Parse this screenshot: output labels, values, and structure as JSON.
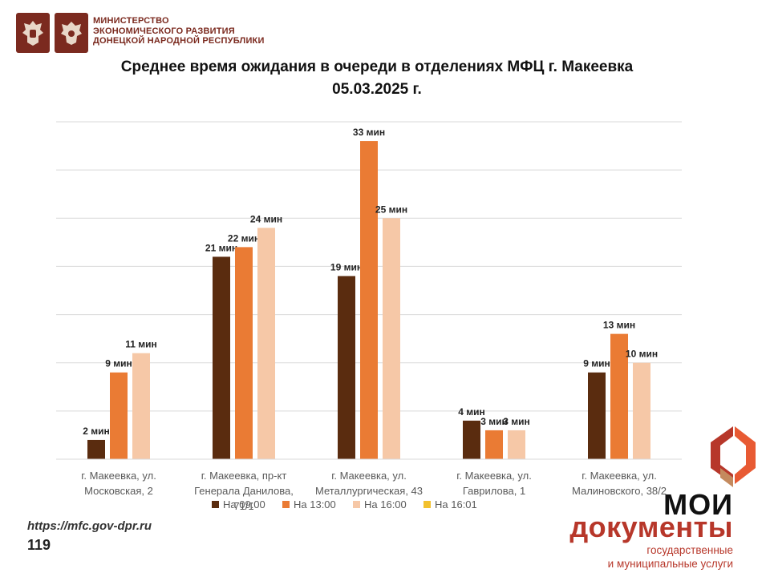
{
  "header": {
    "ministry_lines": [
      "МИНИСТЕРСТВО",
      "ЭКОНОМИЧЕСКОГО РАЗВИТИЯ",
      "ДОНЕЦКОЙ НАРОДНОЙ РЕСПУБЛИКИ"
    ],
    "emblem_color": "#7b2a1f"
  },
  "footer": {
    "url": "https://mfc.gov-dpr.ru",
    "number": "119"
  },
  "brand": {
    "line1": "МОИ",
    "line2": "документы",
    "tagline": [
      "государственные",
      "и муниципальные услуги"
    ],
    "color": "#b7372a"
  },
  "chart_data": {
    "type": "bar",
    "title_lines": [
      "Среднее время ожидания в очереди в отделениях МФЦ г. Макеевка",
      "05.03.2025 г."
    ],
    "categories": [
      [
        "г. Макеевка, ул.",
        "Московская, 2"
      ],
      [
        "г. Макеевка, пр-кт",
        "Генерала Данилова,",
        "71/1"
      ],
      [
        "г. Макеевка, ул.",
        "Металлургическая, 43"
      ],
      [
        "г. Макеевка, ул.",
        "Гаврилова, 1"
      ],
      [
        "г. Макеевка, ул.",
        "Малиновского, 38/2"
      ]
    ],
    "series": [
      {
        "name": "На 09:00",
        "color": "#5a2c0f",
        "values": [
          2,
          21,
          19,
          4,
          9
        ],
        "labels": [
          "2 мин",
          "21 мин",
          "19 мин",
          "4 мин",
          "9 мин"
        ]
      },
      {
        "name": "На 13:00",
        "color": "#ea7b34",
        "values": [
          9,
          22,
          33,
          3,
          13
        ],
        "labels": [
          "9 мин",
          "22 мин",
          "33 мин",
          "3 мин",
          "13 мин"
        ]
      },
      {
        "name": "На 16:00",
        "color": "#f6c8a7",
        "values": [
          11,
          24,
          25,
          3,
          10
        ],
        "labels": [
          "11 мин",
          "24 мин",
          "25 мин",
          "3 мин",
          "10 мин"
        ]
      },
      {
        "name": "На 16:01",
        "color": "#f2c12e",
        "values": [
          null,
          null,
          null,
          null,
          null
        ],
        "labels": [
          "",
          "",
          "",
          "",
          ""
        ]
      }
    ],
    "ylim": [
      0,
      35
    ],
    "grid_step": 5,
    "grid": true,
    "legend_position": "bottom"
  }
}
